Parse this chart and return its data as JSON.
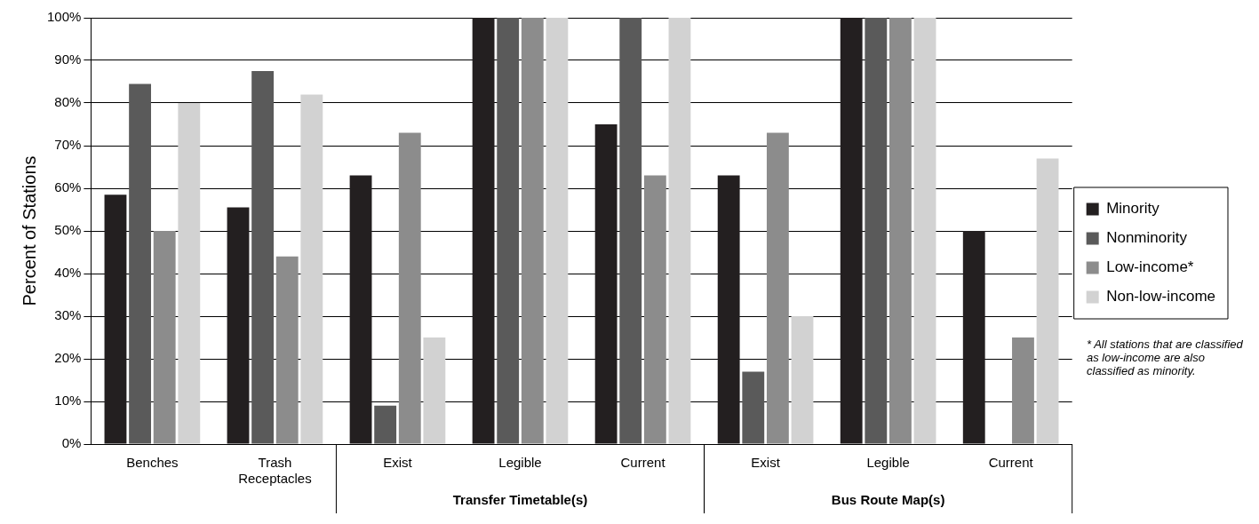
{
  "chart_data": {
    "type": "bar",
    "ylabel": "Percent of Stations",
    "categories": [
      "Benches",
      "Trash Receptacles",
      "Exist",
      "Legible",
      "Current",
      "Exist",
      "Legible",
      "Current"
    ],
    "series": [
      {
        "name": "Minority",
        "color": "#231f20",
        "values": [
          58.5,
          55.5,
          63,
          100,
          75,
          63,
          100,
          50
        ]
      },
      {
        "name": "Nonminority",
        "color": "#5a5a5a",
        "values": [
          84.5,
          87.5,
          9,
          100,
          100,
          17,
          100,
          0
        ]
      },
      {
        "name": "Low-income*",
        "color": "#8c8c8c",
        "values": [
          50,
          44,
          73,
          100,
          63,
          73,
          100,
          25
        ]
      },
      {
        "name": "Non-low-income",
        "color": "#d2d2d2",
        "values": [
          80,
          82,
          25,
          100,
          100,
          30,
          100,
          67
        ]
      }
    ],
    "ylim": [
      0,
      100
    ],
    "yticks": [
      {
        "value": 0,
        "label": "0%"
      },
      {
        "value": 10,
        "label": "10%"
      },
      {
        "value": 20,
        "label": "20%"
      },
      {
        "value": 30,
        "label": "30%"
      },
      {
        "value": 40,
        "label": "40%"
      },
      {
        "value": 50,
        "label": "50%"
      },
      {
        "value": 60,
        "label": "60%"
      },
      {
        "value": 70,
        "label": "70%"
      },
      {
        "value": 80,
        "label": "80%"
      },
      {
        "value": 90,
        "label": "90%"
      },
      {
        "value": 100,
        "label": "100%"
      }
    ],
    "grid": "y",
    "legend": "right",
    "annotations": [
      "Transfer Timetable(s)",
      "Bus Route Map(s)",
      "* All stations that are classified as low-income are also classified as minority."
    ]
  }
}
